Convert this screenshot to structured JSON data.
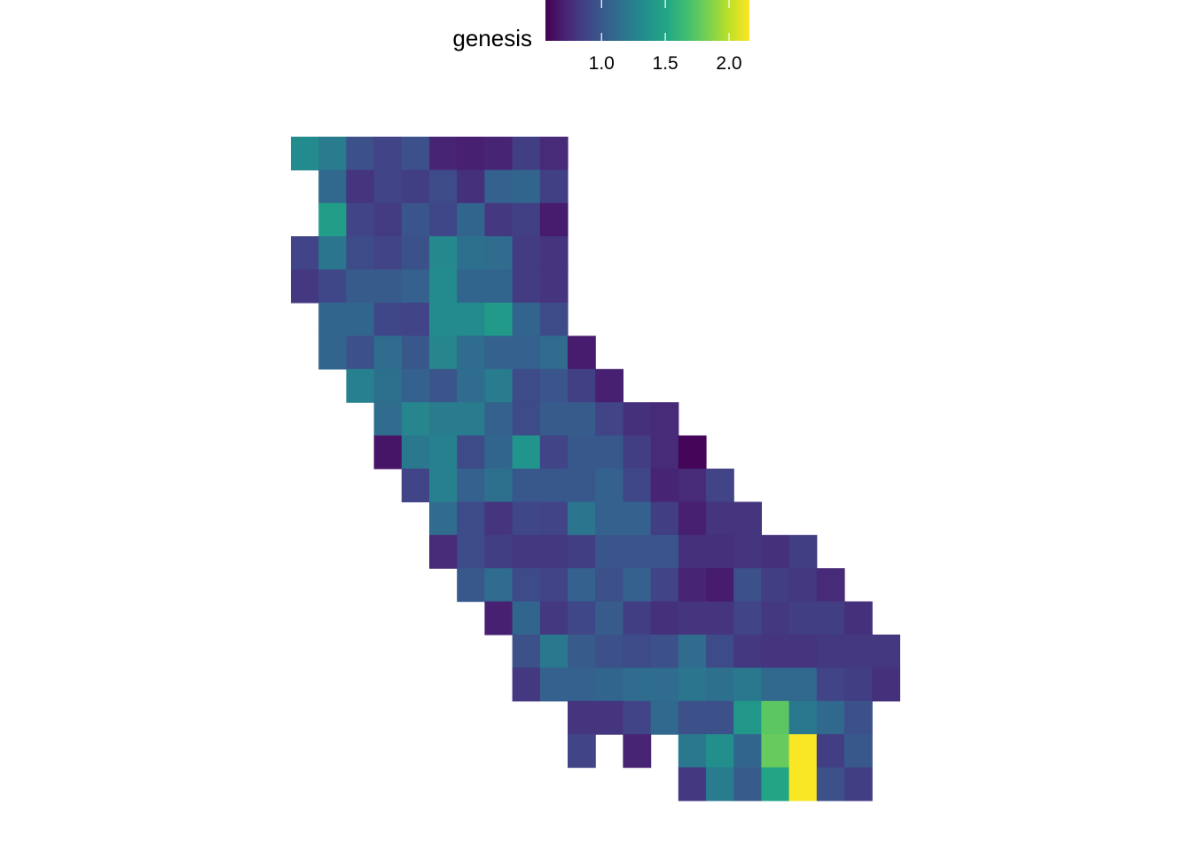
{
  "chart_data": {
    "type": "heatmap",
    "title": "",
    "xlabel": "",
    "ylabel": "",
    "grid": false,
    "legend": {
      "title": "genesis",
      "position": "top",
      "ticks": [
        1.0,
        1.5,
        2.0
      ],
      "tick_labels": [
        "1.0",
        "1.5",
        "2.0"
      ],
      "range": [
        0.56,
        2.16
      ],
      "colormap": "viridis"
    },
    "grid_data": {
      "description_rows": "top-to-bottom",
      "n_cols": 22,
      "n_rows": 24,
      "cells": [
        [
          0,
          0,
          1.32
        ],
        [
          0,
          1,
          1.22
        ],
        [
          0,
          2,
          0.95
        ],
        [
          0,
          3,
          0.88
        ],
        [
          0,
          4,
          0.95
        ],
        [
          0,
          5,
          0.72
        ],
        [
          0,
          6,
          0.7
        ],
        [
          0,
          7,
          0.72
        ],
        [
          0,
          8,
          0.85
        ],
        [
          0,
          9,
          0.75
        ],
        [
          1,
          1,
          1.1
        ],
        [
          1,
          2,
          0.8
        ],
        [
          1,
          3,
          0.88
        ],
        [
          1,
          4,
          0.85
        ],
        [
          1,
          5,
          0.92
        ],
        [
          1,
          6,
          0.78
        ],
        [
          1,
          7,
          1.05
        ],
        [
          1,
          8,
          1.08
        ],
        [
          1,
          9,
          0.86
        ],
        [
          2,
          1,
          1.45
        ],
        [
          2,
          2,
          0.88
        ],
        [
          2,
          3,
          0.84
        ],
        [
          2,
          4,
          0.98
        ],
        [
          2,
          5,
          0.9
        ],
        [
          2,
          6,
          1.08
        ],
        [
          2,
          7,
          0.82
        ],
        [
          2,
          8,
          0.86
        ],
        [
          2,
          9,
          0.68
        ],
        [
          3,
          0,
          0.88
        ],
        [
          3,
          1,
          1.18
        ],
        [
          3,
          2,
          0.92
        ],
        [
          3,
          3,
          0.88
        ],
        [
          3,
          4,
          0.96
        ],
        [
          3,
          5,
          1.3
        ],
        [
          3,
          6,
          1.15
        ],
        [
          3,
          7,
          1.12
        ],
        [
          3,
          8,
          0.84
        ],
        [
          3,
          9,
          0.8
        ],
        [
          4,
          0,
          0.82
        ],
        [
          4,
          1,
          0.9
        ],
        [
          4,
          2,
          1.02
        ],
        [
          4,
          3,
          1.02
        ],
        [
          4,
          4,
          1.05
        ],
        [
          4,
          5,
          1.32
        ],
        [
          4,
          6,
          1.08
        ],
        [
          4,
          7,
          1.08
        ],
        [
          4,
          8,
          0.84
        ],
        [
          4,
          9,
          0.8
        ],
        [
          5,
          1,
          1.08
        ],
        [
          5,
          2,
          1.08
        ],
        [
          5,
          3,
          0.9
        ],
        [
          5,
          4,
          0.88
        ],
        [
          5,
          5,
          1.32
        ],
        [
          5,
          6,
          1.32
        ],
        [
          5,
          7,
          1.42
        ],
        [
          5,
          8,
          1.08
        ],
        [
          5,
          9,
          0.92
        ],
        [
          6,
          1,
          1.08
        ],
        [
          6,
          2,
          0.95
        ],
        [
          6,
          3,
          1.12
        ],
        [
          6,
          4,
          1.0
        ],
        [
          6,
          5,
          1.28
        ],
        [
          6,
          6,
          1.12
        ],
        [
          6,
          7,
          1.05
        ],
        [
          6,
          8,
          1.05
        ],
        [
          6,
          9,
          1.12
        ],
        [
          6,
          10,
          0.68
        ],
        [
          7,
          2,
          1.25
        ],
        [
          7,
          3,
          1.15
        ],
        [
          7,
          4,
          1.05
        ],
        [
          7,
          5,
          0.98
        ],
        [
          7,
          6,
          1.12
        ],
        [
          7,
          7,
          1.22
        ],
        [
          7,
          8,
          0.92
        ],
        [
          7,
          9,
          0.98
        ],
        [
          7,
          10,
          0.86
        ],
        [
          7,
          11,
          0.7
        ],
        [
          8,
          3,
          1.12
        ],
        [
          8,
          4,
          1.28
        ],
        [
          8,
          5,
          1.22
        ],
        [
          8,
          6,
          1.22
        ],
        [
          8,
          7,
          1.05
        ],
        [
          8,
          8,
          0.92
        ],
        [
          8,
          9,
          1.02
        ],
        [
          8,
          10,
          1.02
        ],
        [
          8,
          11,
          0.88
        ],
        [
          8,
          12,
          0.78
        ],
        [
          8,
          13,
          0.75
        ],
        [
          9,
          3,
          0.65
        ],
        [
          9,
          4,
          1.2
        ],
        [
          9,
          5,
          1.25
        ],
        [
          9,
          6,
          0.92
        ],
        [
          9,
          7,
          1.08
        ],
        [
          9,
          8,
          1.38
        ],
        [
          9,
          9,
          0.88
        ],
        [
          9,
          10,
          1.0
        ],
        [
          9,
          11,
          1.0
        ],
        [
          9,
          12,
          0.85
        ],
        [
          9,
          13,
          0.75
        ],
        [
          9,
          14,
          0.58
        ],
        [
          10,
          4,
          0.88
        ],
        [
          10,
          5,
          1.25
        ],
        [
          10,
          6,
          1.05
        ],
        [
          10,
          7,
          1.15
        ],
        [
          10,
          8,
          1.0
        ],
        [
          10,
          9,
          1.0
        ],
        [
          10,
          10,
          1.0
        ],
        [
          10,
          11,
          1.05
        ],
        [
          10,
          12,
          0.9
        ],
        [
          10,
          13,
          0.72
        ],
        [
          10,
          14,
          0.75
        ],
        [
          10,
          15,
          0.88
        ],
        [
          11,
          5,
          1.12
        ],
        [
          11,
          6,
          0.92
        ],
        [
          11,
          7,
          0.8
        ],
        [
          11,
          8,
          0.9
        ],
        [
          11,
          9,
          0.88
        ],
        [
          11,
          10,
          1.18
        ],
        [
          11,
          11,
          1.05
        ],
        [
          11,
          12,
          1.05
        ],
        [
          11,
          13,
          0.85
        ],
        [
          11,
          14,
          0.7
        ],
        [
          11,
          15,
          0.8
        ],
        [
          11,
          16,
          0.8
        ],
        [
          12,
          5,
          0.75
        ],
        [
          12,
          6,
          0.92
        ],
        [
          12,
          7,
          0.85
        ],
        [
          12,
          8,
          0.82
        ],
        [
          12,
          9,
          0.82
        ],
        [
          12,
          10,
          0.85
        ],
        [
          12,
          11,
          0.98
        ],
        [
          12,
          12,
          0.98
        ],
        [
          12,
          13,
          0.98
        ],
        [
          12,
          14,
          0.78
        ],
        [
          12,
          15,
          0.78
        ],
        [
          12,
          16,
          0.8
        ],
        [
          12,
          17,
          0.78
        ],
        [
          12,
          18,
          0.85
        ],
        [
          13,
          6,
          1.0
        ],
        [
          13,
          7,
          1.12
        ],
        [
          13,
          8,
          0.92
        ],
        [
          13,
          9,
          0.88
        ],
        [
          13,
          10,
          1.05
        ],
        [
          13,
          11,
          0.95
        ],
        [
          13,
          12,
          1.05
        ],
        [
          13,
          13,
          0.88
        ],
        [
          13,
          14,
          0.72
        ],
        [
          13,
          15,
          0.68
        ],
        [
          13,
          16,
          0.95
        ],
        [
          13,
          17,
          0.85
        ],
        [
          13,
          18,
          0.82
        ],
        [
          13,
          19,
          0.75
        ],
        [
          14,
          7,
          0.7
        ],
        [
          14,
          8,
          1.08
        ],
        [
          14,
          9,
          0.82
        ],
        [
          14,
          10,
          0.9
        ],
        [
          14,
          11,
          1.02
        ],
        [
          14,
          12,
          0.85
        ],
        [
          14,
          13,
          0.78
        ],
        [
          14,
          14,
          0.8
        ],
        [
          14,
          15,
          0.8
        ],
        [
          14,
          16,
          0.88
        ],
        [
          14,
          17,
          0.82
        ],
        [
          14,
          18,
          0.85
        ],
        [
          14,
          19,
          0.85
        ],
        [
          14,
          20,
          0.78
        ],
        [
          15,
          8,
          0.95
        ],
        [
          15,
          9,
          1.2
        ],
        [
          15,
          10,
          1.02
        ],
        [
          15,
          11,
          0.95
        ],
        [
          15,
          12,
          0.92
        ],
        [
          15,
          13,
          0.95
        ],
        [
          15,
          14,
          1.12
        ],
        [
          15,
          15,
          0.92
        ],
        [
          15,
          16,
          0.82
        ],
        [
          15,
          17,
          0.8
        ],
        [
          15,
          18,
          0.8
        ],
        [
          15,
          19,
          0.82
        ],
        [
          15,
          20,
          0.82
        ],
        [
          15,
          21,
          0.82
        ],
        [
          16,
          8,
          0.82
        ],
        [
          16,
          9,
          1.05
        ],
        [
          16,
          10,
          1.05
        ],
        [
          16,
          11,
          1.08
        ],
        [
          16,
          12,
          1.12
        ],
        [
          16,
          13,
          1.12
        ],
        [
          16,
          14,
          1.18
        ],
        [
          16,
          15,
          1.15
        ],
        [
          16,
          16,
          1.2
        ],
        [
          16,
          17,
          1.1
        ],
        [
          16,
          18,
          1.1
        ],
        [
          16,
          19,
          0.88
        ],
        [
          16,
          20,
          0.85
        ],
        [
          16,
          21,
          0.78
        ],
        [
          17,
          10,
          0.8
        ],
        [
          17,
          11,
          0.8
        ],
        [
          17,
          12,
          0.88
        ],
        [
          17,
          13,
          1.1
        ],
        [
          17,
          14,
          0.95
        ],
        [
          17,
          15,
          0.95
        ],
        [
          17,
          16,
          1.4
        ],
        [
          17,
          17,
          1.75
        ],
        [
          17,
          18,
          1.2
        ],
        [
          17,
          19,
          1.1
        ],
        [
          17,
          20,
          0.95
        ],
        [
          18,
          10,
          0.88
        ],
        [
          18,
          12,
          0.72
        ],
        [
          18,
          14,
          1.2
        ],
        [
          18,
          15,
          1.35
        ],
        [
          18,
          16,
          1.08
        ],
        [
          18,
          17,
          1.78
        ],
        [
          18,
          18,
          2.15
        ],
        [
          18,
          19,
          0.85
        ],
        [
          18,
          20,
          1.0
        ],
        [
          19,
          14,
          0.82
        ],
        [
          19,
          15,
          1.22
        ],
        [
          19,
          16,
          1.02
        ],
        [
          19,
          17,
          1.5
        ],
        [
          19,
          18,
          2.15
        ],
        [
          19,
          19,
          0.95
        ],
        [
          19,
          20,
          0.85
        ]
      ]
    }
  }
}
